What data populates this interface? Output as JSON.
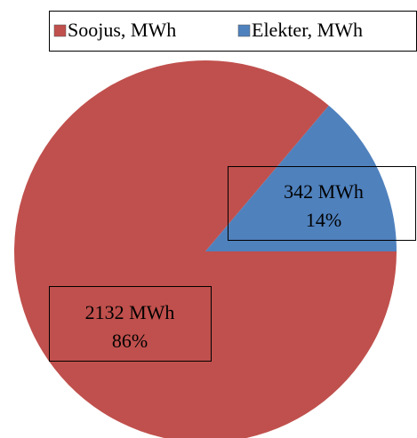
{
  "chart_data": {
    "type": "pie",
    "categories": [
      "Soojus, MWh",
      "Elekter, MWh"
    ],
    "values": [
      2132,
      342
    ],
    "value_labels": [
      "2132 MWh",
      "342 MWh"
    ],
    "percent_labels": [
      "86%",
      "14%"
    ],
    "colors": [
      "#c0504d",
      "#4f81bd"
    ],
    "legend": "top"
  }
}
